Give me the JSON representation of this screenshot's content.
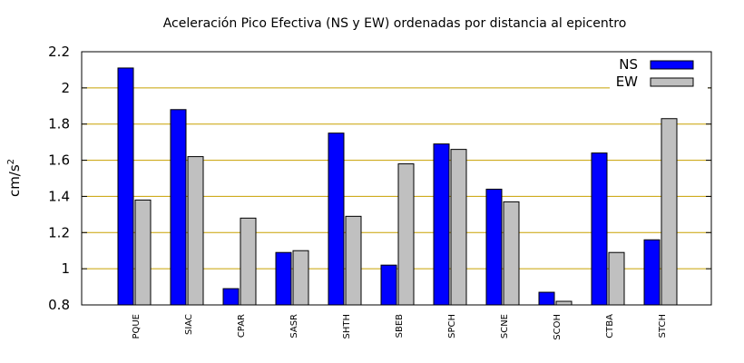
{
  "chart_data": {
    "type": "bar",
    "title": "Aceleración Pico Efectiva (NS y EW) ordenadas por distancia al epicentro",
    "ylabel_main": "cm/s",
    "ylabel_sup": "2",
    "xlabel": "",
    "ylim": [
      0.8,
      2.2
    ],
    "yticks": [
      "0.8",
      "1",
      "1.2",
      "1.4",
      "1.6",
      "1.8",
      "2",
      "2.2"
    ],
    "ytick_values": [
      0.8,
      1.0,
      1.2,
      1.4,
      1.6,
      1.8,
      2.0,
      2.2
    ],
    "grid": true,
    "grid_color": "#c8a000",
    "legend_position": "top-right",
    "categories": [
      "PQUE",
      "SIAC",
      "CPAR",
      "SASR",
      "SHTH",
      "SBEB",
      "SPCH",
      "SCNE",
      "SCOH",
      "CTBA",
      "STCH"
    ],
    "series": [
      {
        "name": "NS",
        "color": "#0000ff",
        "values": [
          2.11,
          1.88,
          0.89,
          1.09,
          1.75,
          1.02,
          1.69,
          1.44,
          0.87,
          1.64,
          1.16
        ]
      },
      {
        "name": "EW",
        "color": "#c0c0c0",
        "values": [
          1.38,
          1.62,
          1.28,
          1.1,
          1.29,
          1.58,
          1.66,
          1.37,
          0.82,
          1.09,
          1.83
        ]
      }
    ]
  }
}
